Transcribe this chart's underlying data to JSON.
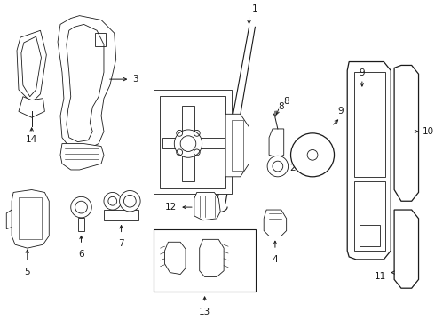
{
  "background_color": "#ffffff",
  "line_color": "#1a1a1a",
  "text_color": "#000000",
  "fig_width": 4.9,
  "fig_height": 3.6,
  "dpi": 100,
  "parts": {
    "label_fontsize": 7.5
  }
}
